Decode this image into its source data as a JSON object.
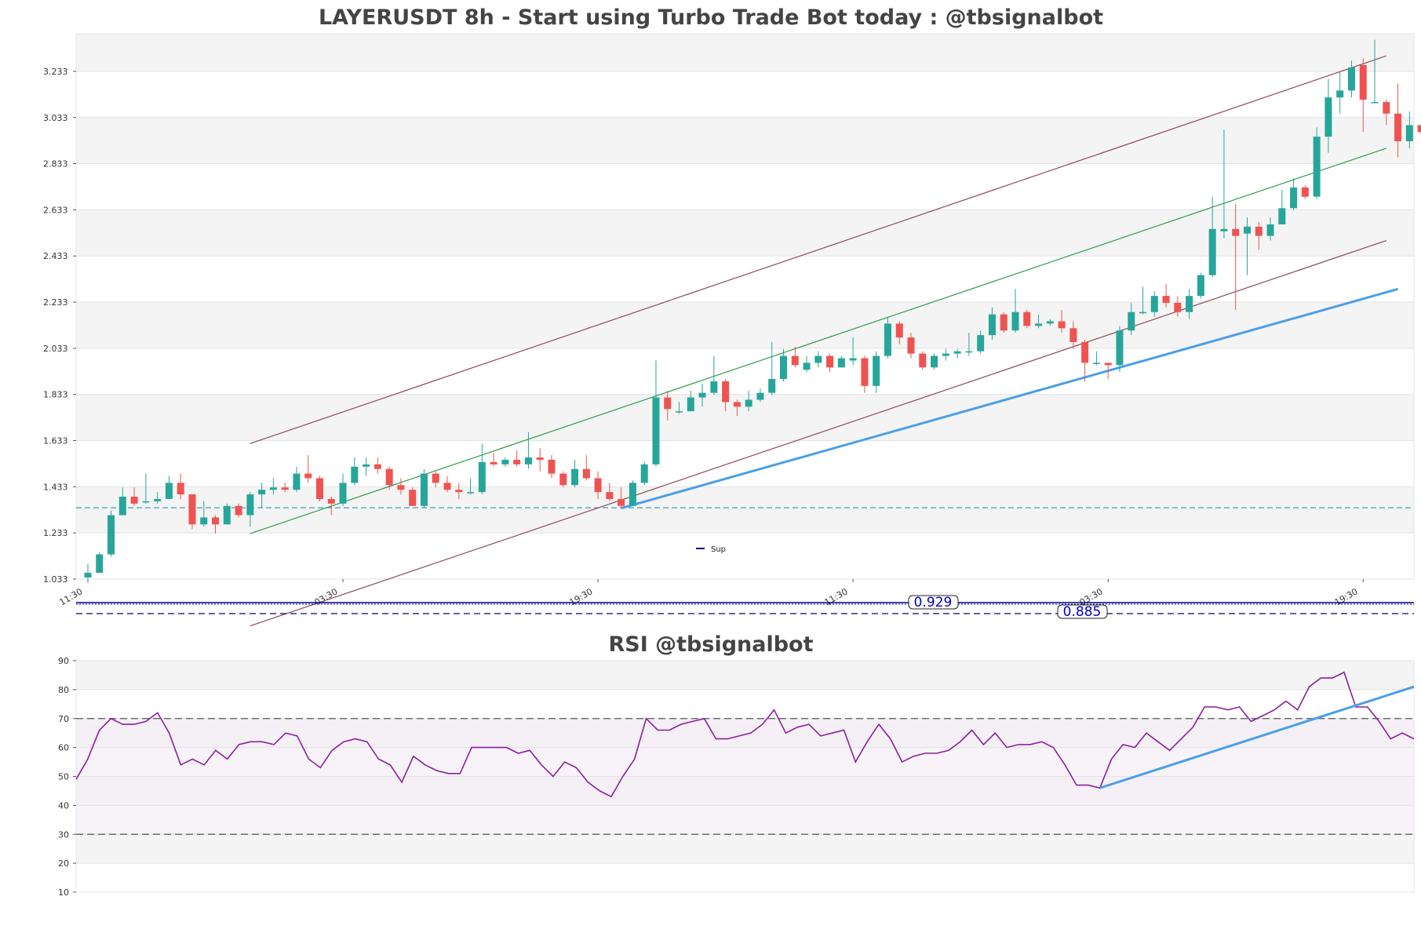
{
  "chart_data": [
    {
      "type": "candlestick",
      "title": "LAYERUSDT 8h - Start using Turbo Trade Bot today : @tbsignalbot",
      "y_ticks": [
        "1.033",
        "1.233",
        "1.433",
        "1.633",
        "1.833",
        "2.033",
        "2.233",
        "2.433",
        "2.633",
        "2.833",
        "3.033",
        "3.233"
      ],
      "ylim": [
        1.033,
        3.396
      ],
      "x_ticks": [
        "11:30",
        "03:30",
        "19:30",
        "11:30",
        "03:30",
        "19:30"
      ],
      "x_tick_index": [
        0,
        22,
        44,
        66,
        88,
        110
      ],
      "legend": {
        "label": "Sup",
        "color": "#00008b"
      },
      "horizontal_line": {
        "value": 1.342,
        "color": "#3aa0b8"
      },
      "candles": [
        [
          1.04,
          1.06,
          1.03,
          1.1
        ],
        [
          1.06,
          1.14,
          1.06,
          1.15
        ],
        [
          1.14,
          1.31,
          1.13,
          1.33
        ],
        [
          1.31,
          1.39,
          1.31,
          1.43
        ],
        [
          1.39,
          1.36,
          1.35,
          1.43
        ],
        [
          1.37,
          1.37,
          1.36,
          1.49
        ],
        [
          1.37,
          1.38,
          1.36,
          1.41
        ],
        [
          1.38,
          1.45,
          1.38,
          1.48
        ],
        [
          1.45,
          1.4,
          1.38,
          1.49
        ],
        [
          1.4,
          1.27,
          1.25,
          1.4
        ],
        [
          1.27,
          1.3,
          1.26,
          1.37
        ],
        [
          1.3,
          1.27,
          1.23,
          1.31
        ],
        [
          1.27,
          1.35,
          1.27,
          1.36
        ],
        [
          1.35,
          1.31,
          1.3,
          1.36
        ],
        [
          1.31,
          1.4,
          1.26,
          1.41
        ],
        [
          1.4,
          1.42,
          1.34,
          1.45
        ],
        [
          1.42,
          1.43,
          1.4,
          1.47
        ],
        [
          1.43,
          1.42,
          1.41,
          1.45
        ],
        [
          1.42,
          1.49,
          1.41,
          1.52
        ],
        [
          1.49,
          1.47,
          1.45,
          1.57
        ],
        [
          1.47,
          1.38,
          1.37,
          1.48
        ],
        [
          1.38,
          1.36,
          1.31,
          1.39
        ],
        [
          1.36,
          1.45,
          1.35,
          1.49
        ],
        [
          1.45,
          1.52,
          1.44,
          1.56
        ],
        [
          1.52,
          1.53,
          1.48,
          1.56
        ],
        [
          1.53,
          1.51,
          1.49,
          1.56
        ],
        [
          1.51,
          1.44,
          1.42,
          1.52
        ],
        [
          1.44,
          1.42,
          1.4,
          1.47
        ],
        [
          1.42,
          1.35,
          1.35,
          1.43
        ],
        [
          1.35,
          1.49,
          1.34,
          1.51
        ],
        [
          1.49,
          1.45,
          1.43,
          1.5
        ],
        [
          1.45,
          1.42,
          1.41,
          1.48
        ],
        [
          1.42,
          1.41,
          1.38,
          1.45
        ],
        [
          1.41,
          1.41,
          1.4,
          1.47
        ],
        [
          1.41,
          1.54,
          1.4,
          1.62
        ],
        [
          1.54,
          1.53,
          1.52,
          1.58
        ],
        [
          1.53,
          1.55,
          1.52,
          1.56
        ],
        [
          1.55,
          1.53,
          1.52,
          1.59
        ],
        [
          1.53,
          1.56,
          1.51,
          1.67
        ],
        [
          1.56,
          1.55,
          1.5,
          1.6
        ],
        [
          1.55,
          1.49,
          1.47,
          1.57
        ],
        [
          1.49,
          1.44,
          1.43,
          1.5
        ],
        [
          1.44,
          1.51,
          1.43,
          1.55
        ],
        [
          1.51,
          1.47,
          1.46,
          1.57
        ],
        [
          1.47,
          1.41,
          1.38,
          1.5
        ],
        [
          1.41,
          1.38,
          1.37,
          1.45
        ],
        [
          1.38,
          1.35,
          1.34,
          1.43
        ],
        [
          1.35,
          1.45,
          1.35,
          1.46
        ],
        [
          1.45,
          1.53,
          1.44,
          1.54
        ],
        [
          1.53,
          1.82,
          1.52,
          1.98
        ],
        [
          1.82,
          1.77,
          1.72,
          1.85
        ],
        [
          1.76,
          1.76,
          1.75,
          1.8
        ],
        [
          1.76,
          1.82,
          1.76,
          1.85
        ],
        [
          1.82,
          1.84,
          1.78,
          1.88
        ],
        [
          1.84,
          1.89,
          1.83,
          2.0
        ],
        [
          1.89,
          1.8,
          1.76,
          1.9
        ],
        [
          1.8,
          1.78,
          1.74,
          1.81
        ],
        [
          1.78,
          1.81,
          1.76,
          1.85
        ],
        [
          1.81,
          1.84,
          1.8,
          1.86
        ],
        [
          1.84,
          1.9,
          1.83,
          2.06
        ],
        [
          1.9,
          2.0,
          1.89,
          2.03
        ],
        [
          2.0,
          1.96,
          1.95,
          2.04
        ],
        [
          1.94,
          1.97,
          1.93,
          2.0
        ],
        [
          1.97,
          2.0,
          1.95,
          2.02
        ],
        [
          2.0,
          1.95,
          1.93,
          2.01
        ],
        [
          1.95,
          1.99,
          1.95,
          2.0
        ],
        [
          1.98,
          1.99,
          1.96,
          2.08
        ],
        [
          1.99,
          1.87,
          1.84,
          2.0
        ],
        [
          1.87,
          2.0,
          1.84,
          2.02
        ],
        [
          2.0,
          2.14,
          1.99,
          2.17
        ],
        [
          2.14,
          2.08,
          2.05,
          2.15
        ],
        [
          2.08,
          2.01,
          1.99,
          2.1
        ],
        [
          2.01,
          1.95,
          1.94,
          2.02
        ],
        [
          1.95,
          2.0,
          1.94,
          2.01
        ],
        [
          2.0,
          2.01,
          1.98,
          2.03
        ],
        [
          2.01,
          2.02,
          1.99,
          2.03
        ],
        [
          2.02,
          2.02,
          2.0,
          2.1
        ],
        [
          2.02,
          2.09,
          2.01,
          2.11
        ],
        [
          2.09,
          2.18,
          2.07,
          2.21
        ],
        [
          2.18,
          2.11,
          2.1,
          2.19
        ],
        [
          2.11,
          2.19,
          2.1,
          2.29
        ],
        [
          2.19,
          2.13,
          2.12,
          2.2
        ],
        [
          2.13,
          2.14,
          2.12,
          2.18
        ],
        [
          2.14,
          2.15,
          2.13,
          2.16
        ],
        [
          2.15,
          2.12,
          2.1,
          2.2
        ],
        [
          2.12,
          2.06,
          2.03,
          2.15
        ],
        [
          2.06,
          1.97,
          1.89,
          2.07
        ],
        [
          1.97,
          1.97,
          1.96,
          2.02
        ],
        [
          1.97,
          1.96,
          1.9,
          1.97
        ],
        [
          1.96,
          2.11,
          1.93,
          2.13
        ],
        [
          2.11,
          2.19,
          2.09,
          2.23
        ],
        [
          2.19,
          2.19,
          2.18,
          2.3
        ],
        [
          2.19,
          2.26,
          2.17,
          2.28
        ],
        [
          2.26,
          2.23,
          2.21,
          2.31
        ],
        [
          2.23,
          2.19,
          2.17,
          2.26
        ],
        [
          2.19,
          2.26,
          2.16,
          2.29
        ],
        [
          2.26,
          2.35,
          2.25,
          2.36
        ],
        [
          2.35,
          2.55,
          2.34,
          2.69
        ],
        [
          2.54,
          2.55,
          2.51,
          2.98
        ],
        [
          2.55,
          2.52,
          2.2,
          2.66
        ],
        [
          2.53,
          2.56,
          2.35,
          2.6
        ],
        [
          2.56,
          2.52,
          2.46,
          2.58
        ],
        [
          2.52,
          2.57,
          2.5,
          2.6
        ],
        [
          2.57,
          2.64,
          2.57,
          2.72
        ],
        [
          2.64,
          2.73,
          2.63,
          2.77
        ],
        [
          2.73,
          2.69,
          2.68,
          2.74
        ],
        [
          2.69,
          2.95,
          2.68,
          2.99
        ],
        [
          2.95,
          3.12,
          2.88,
          3.2
        ],
        [
          3.12,
          3.15,
          3.05,
          3.23
        ],
        [
          3.15,
          3.25,
          3.12,
          3.28
        ],
        [
          3.26,
          3.11,
          2.97,
          3.29
        ],
        [
          3.1,
          3.1,
          3.1,
          3.37
        ],
        [
          3.1,
          3.05,
          3.0,
          3.11
        ],
        [
          3.05,
          2.93,
          2.86,
          3.18
        ],
        [
          2.93,
          3.0,
          2.9,
          3.06
        ],
        [
          3.0,
          2.97,
          2.96,
          3.0
        ]
      ],
      "annotations": {
        "box_value": "0.929",
        "box_value_2": "0.885"
      }
    },
    {
      "type": "line",
      "title": "RSI @tbsignalbot",
      "y_ticks": [
        "10",
        "20",
        "30",
        "40",
        "50",
        "60",
        "70",
        "80",
        "90"
      ],
      "ylim": [
        10,
        90
      ],
      "overbought": 70,
      "oversold": 30,
      "series": [
        {
          "color": "#8b1f9e",
          "values": [
            49,
            56,
            66,
            70,
            68,
            68,
            69,
            72,
            65,
            54,
            56,
            54,
            59,
            56,
            61,
            62,
            62,
            61,
            65,
            64,
            56,
            53,
            59,
            62,
            63,
            62,
            56,
            54,
            48,
            57,
            54,
            52,
            51,
            51,
            60,
            60,
            60,
            60,
            58,
            59,
            54,
            50,
            55,
            53,
            48,
            45,
            43,
            50,
            56,
            70,
            66,
            66,
            68,
            69,
            70,
            63,
            63,
            64,
            65,
            68,
            73,
            65,
            67,
            68,
            64,
            65,
            66,
            55,
            62,
            68,
            63,
            55,
            57,
            58,
            58,
            59,
            62,
            66,
            61,
            65,
            60,
            61,
            61,
            62,
            60,
            54,
            47,
            47,
            46,
            56,
            61,
            60,
            65,
            62,
            59,
            63,
            67,
            74,
            74,
            73,
            74,
            69,
            71,
            73,
            76,
            73,
            81,
            84,
            84,
            86,
            74,
            74,
            69,
            63,
            65,
            63
          ]
        }
      ]
    }
  ]
}
